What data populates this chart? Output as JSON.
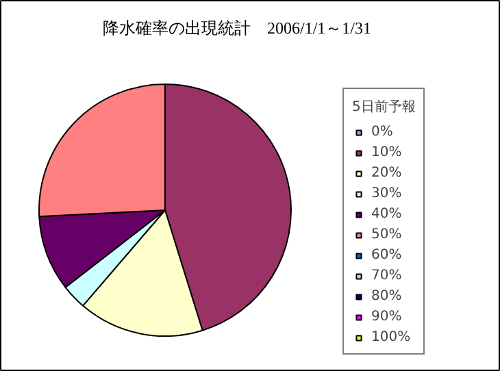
{
  "chart_data": {
    "type": "pie",
    "title": "降水確率の出現統計　2006/1/1～1/31",
    "legend_title": "5日前予報",
    "categories": [
      "0%",
      "10%",
      "20%",
      "30%",
      "40%",
      "50%",
      "60%",
      "70%",
      "80%",
      "90%",
      "100%"
    ],
    "values": [
      0,
      45.2,
      16.1,
      3.2,
      9.7,
      25.8,
      0,
      0,
      0,
      0,
      0
    ],
    "colors": [
      "#9999ff",
      "#993366",
      "#ffffcc",
      "#ccffff",
      "#660066",
      "#ff8080",
      "#0066cc",
      "#ccccff",
      "#000080",
      "#ff00ff",
      "#ffff00"
    ],
    "legend": "right"
  }
}
